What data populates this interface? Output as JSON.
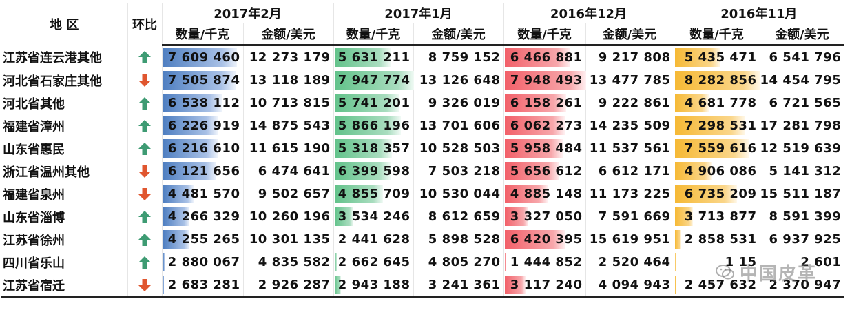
{
  "headers": {
    "region": "地 区",
    "change": "环比",
    "periods": [
      "2017年2月",
      "2017年1月",
      "2016年12月",
      "2016年11月"
    ],
    "qty": "数量/千克",
    "amt": "金额/美元"
  },
  "colors": {
    "blue": "#4f7fc1",
    "green": "#62c28a",
    "red": "#f26069",
    "orange": "#f6b935",
    "arrow_up": "#3e9b73",
    "arrow_down": "#e0562f"
  },
  "rows": [
    {
      "region": "江苏省连云港其他",
      "trend": "up",
      "cells": [
        "7 609 460",
        "12 273 179",
        "5 631 211",
        "8 759 152",
        "6 466 881",
        "9 217 808",
        "5 435 471",
        "6 541 796"
      ],
      "fills": [
        0.92,
        0.71,
        0.81,
        0.54
      ]
    },
    {
      "region": "河北省石家庄其他",
      "trend": "down",
      "cells": [
        "7 505 874",
        "13 118 189",
        "7 947 774",
        "13 126 648",
        "7 948 493",
        "13 477 785",
        "8 282 856",
        "14 454 795"
      ],
      "fills": [
        0.9,
        1.0,
        1.0,
        1.0
      ]
    },
    {
      "region": "河北省其他",
      "trend": "up",
      "cells": [
        "6 538 112",
        "10 713 815",
        "5 741 201",
        "9 326 019",
        "6 158 261",
        "9 222 861",
        "4 681 778",
        "6 721 565"
      ],
      "fills": [
        0.73,
        0.82,
        0.76,
        0.4
      ]
    },
    {
      "region": "福建省漳州",
      "trend": "up",
      "cells": [
        "6 226 919",
        "14 875 543",
        "5 866 196",
        "13 701 606",
        "6 062 273",
        "14 235 509",
        "7 298 531",
        "17 281 798"
      ],
      "fills": [
        0.68,
        0.84,
        0.74,
        0.83
      ]
    },
    {
      "region": "山东省惠民",
      "trend": "up",
      "cells": [
        "6 216 610",
        "11 615 190",
        "5 318 357",
        "10 528 503",
        "5 958 484",
        "11 537 561",
        "7 559 616",
        "12 519 639"
      ],
      "fills": [
        0.68,
        0.73,
        0.72,
        0.87
      ]
    },
    {
      "region": "浙江省温州其他",
      "trend": "down",
      "cells": [
        "6 121 656",
        "6 474 641",
        "6 399 598",
        "7 503 218",
        "5 656 612",
        "6 612 171",
        "4 906 086",
        "5 141 312"
      ],
      "fills": [
        0.66,
        0.71,
        0.67,
        0.44
      ]
    },
    {
      "region": "福建省泉州",
      "trend": "down",
      "cells": [
        "4 481 570",
        "9 502 657",
        "4 855 709",
        "10 530 044",
        "4 885 148",
        "11 173 225",
        "6 735 209",
        "15 511 187"
      ],
      "fills": [
        0.38,
        0.61,
        0.53,
        0.73
      ]
    },
    {
      "region": "山东省淄博",
      "trend": "up",
      "cells": [
        "4 266 329",
        "10 260 196",
        "3 534 246",
        "8 612 659",
        "3 327 050",
        "7 591 669",
        "3 713 877",
        "8 591 399"
      ],
      "fills": [
        0.33,
        0.24,
        0.29,
        0.21
      ]
    },
    {
      "region": "江苏省徐州",
      "trend": "up",
      "cells": [
        "4 255 265",
        "10 301 135",
        "2 441 628",
        "5 898 528",
        "6 420 395",
        "15 619 951",
        "2 858 531",
        "6 937 925"
      ],
      "fills": [
        0.33,
        0.0,
        0.75,
        0.08
      ]
    },
    {
      "region": "四川省乐山",
      "trend": "up",
      "cells": [
        "2 880 067",
        "4 835 582",
        "2 662 645",
        "4 805 270",
        "1 444 852",
        "2 520 464",
        "1 15",
        "2 601"
      ],
      "fills": [
        0.02,
        0.03,
        0.0,
        0.0
      ]
    },
    {
      "region": "江苏省宿迁",
      "trend": "down",
      "cells": [
        "2 683 281",
        "2 926 287",
        "2 943 188",
        "3 241 361",
        "3 117 240",
        "4 094 943",
        "2 457 632",
        "2 370 947"
      ],
      "fills": [
        0.0,
        0.08,
        0.26,
        0.02
      ]
    }
  ],
  "watermark": "中国皮革"
}
